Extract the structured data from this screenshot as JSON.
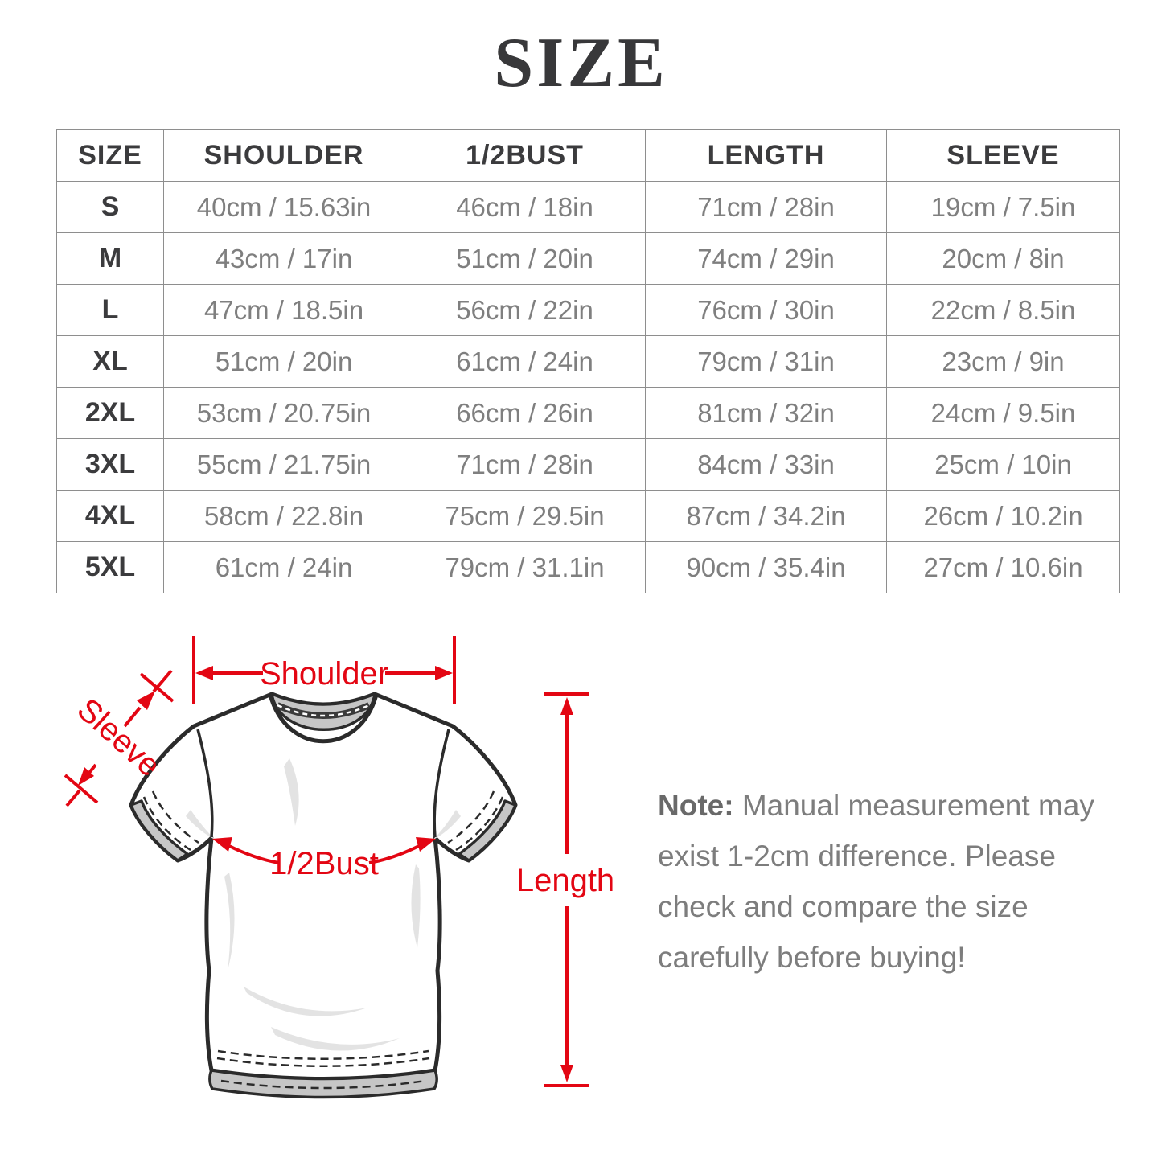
{
  "title": "SIZE",
  "accent_red": "#e30613",
  "table": {
    "headers": [
      "SIZE",
      "SHOULDER",
      "1/2BUST",
      "LENGTH",
      "SLEEVE"
    ],
    "rows": [
      [
        "S",
        "40cm / 15.63in",
        "46cm / 18in",
        "71cm / 28in",
        "19cm / 7.5in"
      ],
      [
        "M",
        "43cm / 17in",
        "51cm / 20in",
        "74cm / 29in",
        "20cm / 8in"
      ],
      [
        "L",
        "47cm / 18.5in",
        "56cm / 22in",
        "76cm / 30in",
        "22cm / 8.5in"
      ],
      [
        "XL",
        "51cm / 20in",
        "61cm / 24in",
        "79cm / 31in",
        "23cm / 9in"
      ],
      [
        "2XL",
        "53cm / 20.75in",
        "66cm / 26in",
        "81cm / 32in",
        "24cm / 9.5in"
      ],
      [
        "3XL",
        "55cm / 21.75in",
        "71cm / 28in",
        "84cm / 33in",
        "25cm / 10in"
      ],
      [
        "4XL",
        "58cm / 22.8in",
        "75cm / 29.5in",
        "87cm / 34.2in",
        "26cm / 10.2in"
      ],
      [
        "5XL",
        "61cm / 24in",
        "79cm / 31.1in",
        "90cm / 35.4in",
        "27cm / 10.6in"
      ]
    ]
  },
  "diagram": {
    "shoulder_label": "Shoulder",
    "sleeve_label": "Sleeve",
    "bust_label": "1/2Bust",
    "length_label": "Length"
  },
  "note": {
    "label": "Note:",
    "lines": [
      "Manual measurement may",
      "exist 1-2cm difference. Please",
      "check and compare the size",
      "carefully before buying!"
    ]
  }
}
